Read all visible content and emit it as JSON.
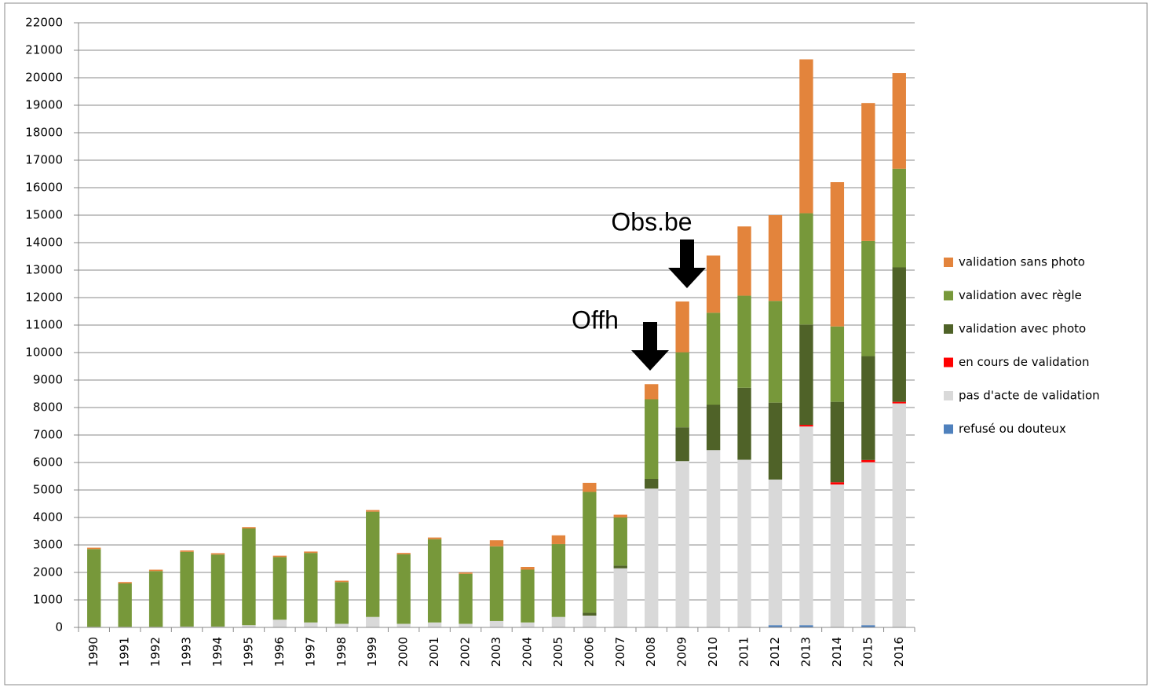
{
  "chart_data": {
    "type": "stacked_bar",
    "categories": [
      "1990",
      "1991",
      "1992",
      "1993",
      "1994",
      "1995",
      "1996",
      "1997",
      "1998",
      "1999",
      "2000",
      "2001",
      "2002",
      "2003",
      "2004",
      "2005",
      "2006",
      "2007",
      "2008",
      "2009",
      "2010",
      "2011",
      "2012",
      "2013",
      "2014",
      "2015",
      "2016"
    ],
    "series": [
      {
        "name": "refusé ou douteux",
        "color": "#4f81bd",
        "values": [
          0,
          0,
          0,
          0,
          0,
          0,
          0,
          0,
          0,
          0,
          0,
          0,
          0,
          0,
          0,
          0,
          0,
          0,
          0,
          0,
          0,
          0,
          80,
          80,
          0,
          80,
          0
        ]
      },
      {
        "name": "pas d'acte de validation",
        "color": "#d9d9d9",
        "values": [
          20,
          20,
          20,
          30,
          30,
          80,
          280,
          180,
          130,
          380,
          130,
          180,
          130,
          230,
          180,
          380,
          430,
          2150,
          5050,
          6050,
          6450,
          6100,
          5300,
          7230,
          5200,
          5930,
          8150
        ]
      },
      {
        "name": "en cours de validation",
        "color": "#ff0000",
        "values": [
          0,
          0,
          0,
          0,
          0,
          0,
          0,
          0,
          0,
          0,
          0,
          0,
          0,
          0,
          0,
          0,
          0,
          0,
          0,
          0,
          0,
          0,
          0,
          60,
          80,
          80,
          60
        ]
      },
      {
        "name": "validation avec photo",
        "color": "#4f6228",
        "values": [
          0,
          0,
          0,
          0,
          0,
          0,
          0,
          0,
          0,
          0,
          0,
          0,
          0,
          0,
          0,
          0,
          100,
          100,
          350,
          1230,
          1650,
          2620,
          2800,
          3650,
          2930,
          3780,
          4890
        ]
      },
      {
        "name": "validation avec règle",
        "color": "#77983a",
        "values": [
          2830,
          1580,
          2030,
          2720,
          2620,
          3520,
          2280,
          2530,
          1520,
          3830,
          2530,
          3030,
          1820,
          2720,
          1920,
          2650,
          4400,
          1750,
          2900,
          2730,
          3350,
          3350,
          3700,
          4050,
          2740,
          4190,
          3590
        ]
      },
      {
        "name": "validation sans photo",
        "color": "#e3843c",
        "values": [
          50,
          50,
          50,
          50,
          50,
          50,
          50,
          50,
          50,
          60,
          50,
          60,
          50,
          220,
          100,
          320,
          330,
          100,
          550,
          1850,
          2080,
          2520,
          3120,
          5600,
          5250,
          5020,
          3480
        ]
      }
    ],
    "ylim": [
      0,
      22000
    ],
    "yticks": [
      0,
      1000,
      2000,
      3000,
      4000,
      5000,
      6000,
      7000,
      8000,
      9000,
      10000,
      11000,
      12000,
      13000,
      14000,
      15000,
      16000,
      17000,
      18000,
      19000,
      20000,
      21000,
      22000
    ],
    "grid": true,
    "legend": "right",
    "annotations": [
      "Offh",
      "Obs.be"
    ]
  }
}
